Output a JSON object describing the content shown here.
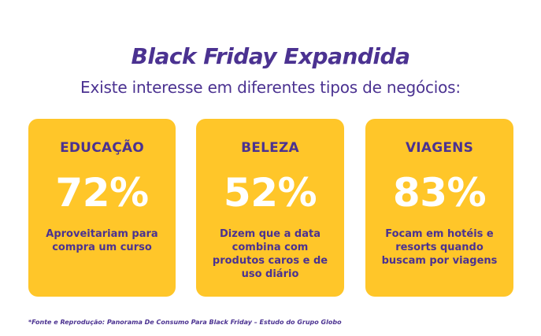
{
  "colors": {
    "primary": "#4B3291",
    "card": "#FFC629",
    "value_text": "#FFFFFF",
    "background": "#FFFFFF"
  },
  "header": {
    "title": "Black Friday Expandida",
    "subtitle": "Existe interesse em diferentes tipos de negócios:"
  },
  "cards": [
    {
      "label": "EDUCAÇÃO",
      "value": "72%",
      "description": "Aproveitariam para compra um curso"
    },
    {
      "label": "BELEZA",
      "value": "52%",
      "description": "Dizem que a data combina com produtos caros e de uso diário"
    },
    {
      "label": "VIAGENS",
      "value": "83%",
      "description": "Focam em hotéis e resorts quando buscam por viagens"
    }
  ],
  "footnote": "*Fonte e Reprodução: Panorama De Consumo Para Black Friday – Estudo do Grupo Globo"
}
